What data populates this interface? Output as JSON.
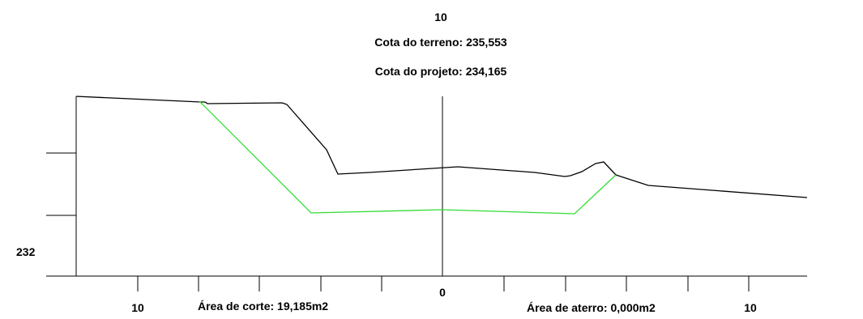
{
  "header": {
    "station": "10",
    "terrain_elevation": "Cota do terreno: 235,553",
    "project_elevation": "Cota do projeto: 234,165"
  },
  "elevation_label": "232",
  "offset_labels": {
    "left": "10",
    "center": "0",
    "right": "10"
  },
  "areas": {
    "cut": "Área de corte: 19,185m2",
    "fill": "Área de aterro: 0,000m2"
  },
  "colors": {
    "terrain": "#000000",
    "project": "#33dd33",
    "axis": "#000000"
  }
}
